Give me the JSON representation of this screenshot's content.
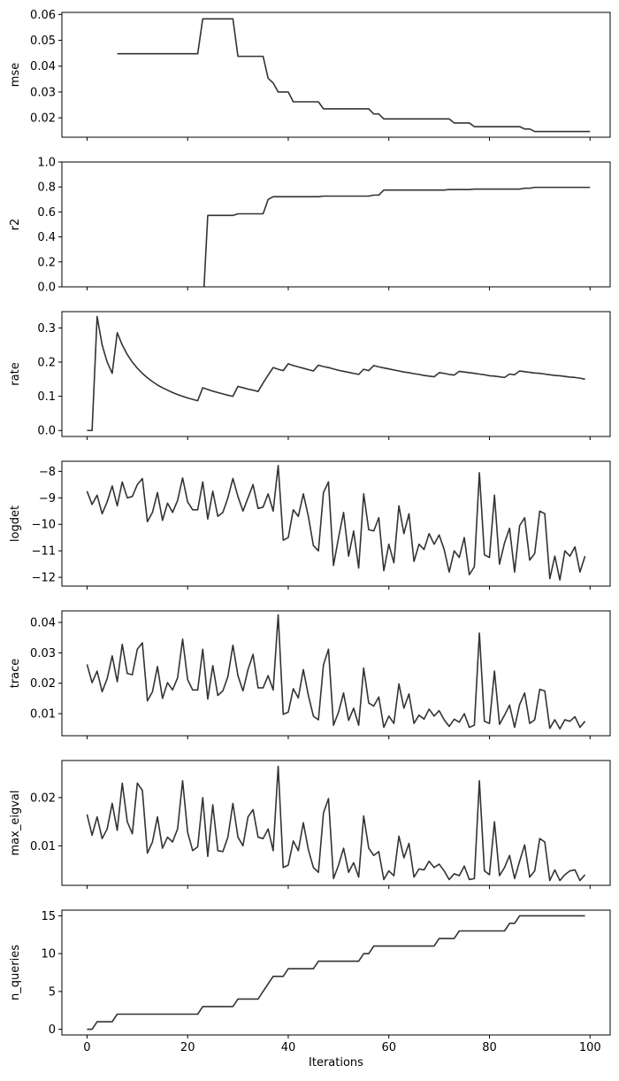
{
  "chart_data": [
    {
      "type": "line",
      "ylabel": "mse",
      "ylim": [
        0.0125,
        0.0608
      ],
      "yticks": [
        0.02,
        0.03,
        0.04,
        0.05,
        0.06
      ],
      "ytick_labels": [
        "0.02",
        "0.03",
        "0.04",
        "0.05",
        "0.06"
      ],
      "series": [
        {
          "x_start": 6,
          "values": [
            0.0448,
            0.0448,
            0.0448,
            0.0448,
            0.0448,
            0.0448,
            0.0448,
            0.0448,
            0.0448,
            0.0448,
            0.0448,
            0.0448,
            0.0448,
            0.0448,
            0.0448,
            0.0448,
            0.0448,
            0.0583,
            0.0583,
            0.0583,
            0.0583,
            0.0583,
            0.0583,
            0.0583,
            0.0438,
            0.0438,
            0.0438,
            0.0438,
            0.0438,
            0.0438,
            0.0353,
            0.0335,
            0.03,
            0.03,
            0.03,
            0.0262,
            0.0262,
            0.0262,
            0.0262,
            0.0262,
            0.0262,
            0.0235,
            0.0235,
            0.0235,
            0.0235,
            0.0235,
            0.0235,
            0.0235,
            0.0235,
            0.0235,
            0.0235,
            0.0215,
            0.0215,
            0.0196,
            0.0196,
            0.0196,
            0.0196,
            0.0196,
            0.0196,
            0.0196,
            0.0196,
            0.0196,
            0.0196,
            0.0196,
            0.0196,
            0.0196,
            0.0196,
            0.018,
            0.018,
            0.018,
            0.018,
            0.0166,
            0.0166,
            0.0166,
            0.0166,
            0.0166,
            0.0166,
            0.0166,
            0.0166,
            0.0166,
            0.0166,
            0.0157,
            0.0157,
            0.0147,
            0.0147,
            0.0147,
            0.0147,
            0.0147,
            0.0147,
            0.0147,
            0.0147,
            0.0147,
            0.0147,
            0.0147,
            0.0147
          ]
        }
      ]
    },
    {
      "type": "line",
      "ylabel": "r2",
      "ylim": [
        0.0,
        1.0
      ],
      "yticks": [
        0.0,
        0.2,
        0.4,
        0.6,
        0.8,
        1.0
      ],
      "ytick_labels": [
        "0.0",
        "0.2",
        "0.4",
        "0.6",
        "0.8",
        "1.0"
      ],
      "series": [
        {
          "x_start": 23,
          "values": [
            -0.2,
            0.572,
            0.572,
            0.572,
            0.572,
            0.572,
            0.572,
            0.585,
            0.585,
            0.585,
            0.585,
            0.585,
            0.585,
            0.7,
            0.722,
            0.722,
            0.722,
            0.722,
            0.722,
            0.722,
            0.722,
            0.722,
            0.722,
            0.722,
            0.727,
            0.727,
            0.727,
            0.727,
            0.727,
            0.727,
            0.727,
            0.727,
            0.727,
            0.727,
            0.735,
            0.735,
            0.775,
            0.775,
            0.775,
            0.775,
            0.775,
            0.775,
            0.775,
            0.775,
            0.775,
            0.775,
            0.775,
            0.775,
            0.775,
            0.78,
            0.78,
            0.78,
            0.78,
            0.78,
            0.783,
            0.783,
            0.783,
            0.783,
            0.783,
            0.783,
            0.783,
            0.783,
            0.783,
            0.783,
            0.79,
            0.79,
            0.797,
            0.797,
            0.797,
            0.797,
            0.797,
            0.797,
            0.797,
            0.797,
            0.797,
            0.797,
            0.797,
            0.797
          ]
        }
      ]
    },
    {
      "type": "line",
      "ylabel": "rate",
      "ylim": [
        -0.0175,
        0.3475
      ],
      "yticks": [
        0.0,
        0.1,
        0.2,
        0.3
      ],
      "ytick_labels": [
        "0.0",
        "0.1",
        "0.2",
        "0.3"
      ],
      "series": [
        {
          "x_start": 0,
          "values": [
            0.0,
            0.0,
            0.333,
            0.25,
            0.2,
            0.167,
            0.286,
            0.25,
            0.222,
            0.2,
            0.182,
            0.167,
            0.154,
            0.143,
            0.133,
            0.125,
            0.118,
            0.111,
            0.105,
            0.1,
            0.095,
            0.091,
            0.087,
            0.125,
            0.12,
            0.115,
            0.111,
            0.107,
            0.103,
            0.1,
            0.129,
            0.125,
            0.121,
            0.118,
            0.114,
            0.139,
            0.162,
            0.184,
            0.179,
            0.175,
            0.195,
            0.19,
            0.186,
            0.182,
            0.178,
            0.174,
            0.191,
            0.187,
            0.184,
            0.18,
            0.176,
            0.173,
            0.17,
            0.167,
            0.164,
            0.179,
            0.175,
            0.19,
            0.186,
            0.183,
            0.18,
            0.177,
            0.174,
            0.171,
            0.169,
            0.166,
            0.164,
            0.161,
            0.159,
            0.157,
            0.169,
            0.167,
            0.164,
            0.162,
            0.173,
            0.171,
            0.169,
            0.167,
            0.165,
            0.163,
            0.16,
            0.159,
            0.157,
            0.155,
            0.165,
            0.163,
            0.174,
            0.172,
            0.17,
            0.168,
            0.167,
            0.165,
            0.163,
            0.161,
            0.16,
            0.158,
            0.156,
            0.155,
            0.153,
            0.15
          ]
        }
      ]
    },
    {
      "type": "line",
      "ylabel": "logdet",
      "ylim": [
        -12.33,
        -7.62
      ],
      "yticks": [
        -12,
        -11,
        -10,
        -9,
        -8
      ],
      "ytick_labels": [
        "−12",
        "−11",
        "−10",
        "−9",
        "−8"
      ],
      "series": [
        {
          "x_start": 0,
          "values": [
            -8.75,
            -9.25,
            -8.9,
            -9.6,
            -9.15,
            -8.55,
            -9.3,
            -8.4,
            -9.0,
            -8.95,
            -8.5,
            -8.27,
            -9.9,
            -9.55,
            -8.8,
            -9.85,
            -9.2,
            -9.55,
            -9.1,
            -8.25,
            -9.15,
            -9.45,
            -9.45,
            -8.4,
            -9.8,
            -8.75,
            -9.7,
            -9.55,
            -9.0,
            -8.27,
            -8.95,
            -9.5,
            -9.0,
            -8.5,
            -9.4,
            -9.35,
            -8.85,
            -9.5,
            -7.78,
            -10.6,
            -10.5,
            -9.45,
            -9.7,
            -8.85,
            -9.7,
            -10.8,
            -11.0,
            -8.8,
            -8.4,
            -11.55,
            -10.5,
            -9.55,
            -11.2,
            -10.25,
            -11.65,
            -8.85,
            -10.2,
            -10.25,
            -9.75,
            -11.75,
            -10.75,
            -11.45,
            -9.3,
            -10.35,
            -9.6,
            -11.4,
            -10.75,
            -10.95,
            -10.35,
            -10.75,
            -10.4,
            -10.95,
            -11.8,
            -11.0,
            -11.25,
            -10.5,
            -11.9,
            -11.6,
            -8.05,
            -11.15,
            -11.25,
            -8.9,
            -11.5,
            -10.7,
            -10.15,
            -11.8,
            -10.05,
            -9.75,
            -11.35,
            -11.1,
            -9.5,
            -9.6,
            -12.05,
            -11.2,
            -12.1,
            -11.0,
            -11.2,
            -10.85,
            -11.8,
            -11.2
          ]
        }
      ]
    },
    {
      "type": "line",
      "ylabel": "trace",
      "ylim": [
        0.00275,
        0.0438
      ],
      "yticks": [
        0.01,
        0.02,
        0.03,
        0.04
      ],
      "ytick_labels": [
        "0.01",
        "0.02",
        "0.03",
        "0.04"
      ],
      "series": [
        {
          "x_start": 0,
          "values": [
            0.0262,
            0.0202,
            0.024,
            0.0172,
            0.0215,
            0.029,
            0.0205,
            0.0328,
            0.0232,
            0.0228,
            0.0312,
            0.0333,
            0.0142,
            0.0172,
            0.0255,
            0.015,
            0.0202,
            0.0178,
            0.0218,
            0.0345,
            0.0212,
            0.0178,
            0.0178,
            0.0312,
            0.0148,
            0.0258,
            0.016,
            0.0175,
            0.0222,
            0.0325,
            0.0225,
            0.0175,
            0.0245,
            0.0295,
            0.0185,
            0.0185,
            0.0225,
            0.0178,
            0.0425,
            0.0098,
            0.0105,
            0.0182,
            0.0152,
            0.0245,
            0.016,
            0.0092,
            0.008,
            0.026,
            0.0312,
            0.0062,
            0.0105,
            0.0168,
            0.0078,
            0.0118,
            0.0062,
            0.025,
            0.0135,
            0.0125,
            0.0155,
            0.0055,
            0.0092,
            0.0068,
            0.0198,
            0.0118,
            0.0165,
            0.0068,
            0.0095,
            0.0082,
            0.0115,
            0.0092,
            0.011,
            0.008,
            0.0058,
            0.0082,
            0.0072,
            0.01,
            0.0055,
            0.0062,
            0.0365,
            0.0075,
            0.0068,
            0.024,
            0.0065,
            0.0095,
            0.0128,
            0.0055,
            0.013,
            0.0168,
            0.0068,
            0.008,
            0.018,
            0.0175,
            0.0052,
            0.008,
            0.005,
            0.008,
            0.0075,
            0.009,
            0.0055,
            0.0075
          ]
        }
      ]
    },
    {
      "type": "line",
      "ylabel": "max_eigval",
      "ylim": [
        0.0018,
        0.0277
      ],
      "yticks": [
        0.01,
        0.02
      ],
      "ytick_labels": [
        "0.01",
        "0.02"
      ],
      "series": [
        {
          "x_start": 0,
          "values": [
            0.0165,
            0.0122,
            0.016,
            0.0115,
            0.0135,
            0.0188,
            0.0132,
            0.023,
            0.015,
            0.0125,
            0.023,
            0.0215,
            0.0085,
            0.0108,
            0.016,
            0.0095,
            0.0118,
            0.0108,
            0.0135,
            0.0235,
            0.0128,
            0.009,
            0.0098,
            0.02,
            0.0078,
            0.0185,
            0.009,
            0.0088,
            0.0118,
            0.0188,
            0.0118,
            0.01,
            0.016,
            0.0175,
            0.0118,
            0.0115,
            0.0135,
            0.009,
            0.0265,
            0.0055,
            0.006,
            0.011,
            0.009,
            0.0148,
            0.0092,
            0.0055,
            0.0045,
            0.0168,
            0.0198,
            0.0032,
            0.006,
            0.0095,
            0.0045,
            0.0065,
            0.0035,
            0.0162,
            0.0095,
            0.008,
            0.0088,
            0.003,
            0.0048,
            0.0038,
            0.012,
            0.0075,
            0.0105,
            0.0035,
            0.0052,
            0.005,
            0.0068,
            0.0055,
            0.0062,
            0.0048,
            0.003,
            0.0042,
            0.0038,
            0.0058,
            0.003,
            0.0032,
            0.0235,
            0.0048,
            0.004,
            0.015,
            0.0038,
            0.0055,
            0.008,
            0.0032,
            0.0068,
            0.0102,
            0.0035,
            0.0048,
            0.0115,
            0.0108,
            0.0028,
            0.005,
            0.0028,
            0.004,
            0.0048,
            0.005,
            0.0028,
            0.004
          ]
        }
      ]
    },
    {
      "type": "line",
      "ylabel": "n_queries",
      "xlabel": "Iterations",
      "xlim": [
        -5,
        104
      ],
      "xticks": [
        0,
        20,
        40,
        60,
        80,
        100
      ],
      "xtick_labels": [
        "0",
        "20",
        "40",
        "60",
        "80",
        "100"
      ],
      "ylim": [
        -0.75,
        15.75
      ],
      "yticks": [
        0,
        5,
        10,
        15
      ],
      "ytick_labels": [
        "0",
        "5",
        "10",
        "15"
      ],
      "series": [
        {
          "x_start": 0,
          "values": [
            0,
            0,
            1,
            1,
            1,
            1,
            2,
            2,
            2,
            2,
            2,
            2,
            2,
            2,
            2,
            2,
            2,
            2,
            2,
            2,
            2,
            2,
            2,
            3,
            3,
            3,
            3,
            3,
            3,
            3,
            4,
            4,
            4,
            4,
            4,
            5,
            6,
            7,
            7,
            7,
            8,
            8,
            8,
            8,
            8,
            8,
            9,
            9,
            9,
            9,
            9,
            9,
            9,
            9,
            9,
            10,
            10,
            11,
            11,
            11,
            11,
            11,
            11,
            11,
            11,
            11,
            11,
            11,
            11,
            11,
            12,
            12,
            12,
            12,
            13,
            13,
            13,
            13,
            13,
            13,
            13,
            13,
            13,
            13,
            14,
            14,
            15,
            15,
            15,
            15,
            15,
            15,
            15,
            15,
            15,
            15,
            15,
            15,
            15,
            15
          ]
        }
      ]
    }
  ]
}
